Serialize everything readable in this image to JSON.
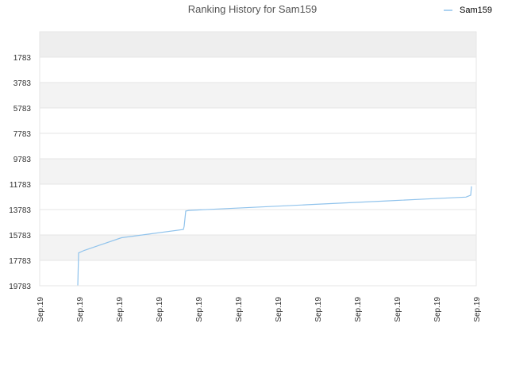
{
  "chart_data": {
    "type": "line",
    "title": "Ranking History for Sam159",
    "xlabel": "",
    "ylabel": "",
    "y_inverted": true,
    "ylim": [
      -217,
      19783
    ],
    "y_ticks": [
      "1783",
      "3783",
      "5783",
      "7783",
      "9783",
      "11783",
      "13783",
      "15783",
      "17783",
      "19783"
    ],
    "y_tick_values": [
      1783,
      3783,
      5783,
      7783,
      9783,
      11783,
      13783,
      15783,
      17783,
      19783
    ],
    "x_ticks": [
      "Sep.19",
      "Sep.19",
      "Sep.19",
      "Sep.19",
      "Sep.19",
      "Sep.19",
      "Sep.19",
      "Sep.19",
      "Sep.19",
      "Sep.19",
      "Sep.19",
      "Sep.19"
    ],
    "legend_position": "top-right",
    "grid": true,
    "series": [
      {
        "name": "Sam159",
        "color": "#90c3ec",
        "points": [
          [
            0.96,
            19783
          ],
          [
            0.98,
            17200
          ],
          [
            1.12,
            17000
          ],
          [
            2.06,
            16000
          ],
          [
            3.62,
            15350
          ],
          [
            3.64,
            15100
          ],
          [
            3.68,
            13900
          ],
          [
            3.76,
            13850
          ],
          [
            4.75,
            13700
          ],
          [
            5.75,
            13550
          ],
          [
            6.75,
            13400
          ],
          [
            7.75,
            13250
          ],
          [
            8.75,
            13100
          ],
          [
            9.75,
            12950
          ],
          [
            10.74,
            12800
          ],
          [
            10.86,
            12650
          ],
          [
            10.88,
            11950
          ]
        ]
      }
    ]
  }
}
